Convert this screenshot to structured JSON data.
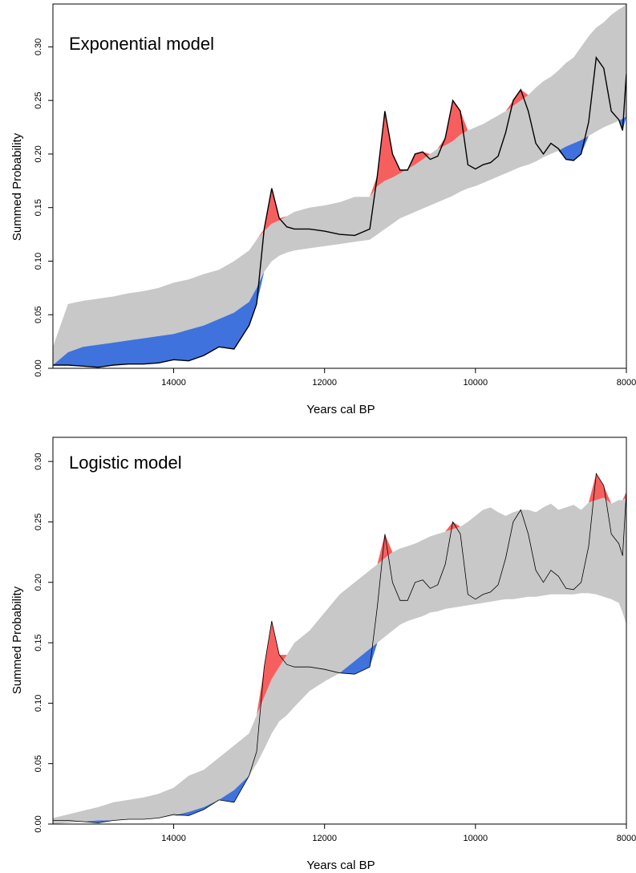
{
  "chart_data": [
    {
      "type": "area",
      "title": "Exponential model",
      "xlabel": "Years cal BP",
      "ylabel": "Summed Probability",
      "xlim": [
        15600,
        8000
      ],
      "ylim": [
        0,
        0.34
      ],
      "x_reversed": true,
      "grid": false,
      "xticks": [
        14000,
        12000,
        10000,
        8000
      ],
      "xtick_labels": [
        "14000",
        "12000",
        "10000",
        "8000"
      ],
      "yticks": [
        0,
        0.05,
        0.1,
        0.15,
        0.2,
        0.25,
        0.3
      ],
      "ytick_labels": [
        "0.00",
        "0.05",
        "0.10",
        "0.15",
        "0.20",
        "0.25",
        "0.30"
      ],
      "colors": {
        "envelope": "#c8c8c8",
        "above": "#f75f5f",
        "below": "#3f72dc",
        "spd": "#000000"
      },
      "x": [
        15600,
        15400,
        15200,
        15000,
        14800,
        14600,
        14400,
        14200,
        14000,
        13800,
        13600,
        13400,
        13200,
        13000,
        12900,
        12800,
        12700,
        12600,
        12500,
        12400,
        12200,
        12000,
        11800,
        11600,
        11400,
        11300,
        11200,
        11100,
        11000,
        10900,
        10800,
        10700,
        10600,
        10500,
        10400,
        10300,
        10200,
        10100,
        10000,
        9900,
        9800,
        9700,
        9600,
        9500,
        9400,
        9300,
        9200,
        9100,
        9000,
        8900,
        8800,
        8700,
        8600,
        8500,
        8400,
        8300,
        8200,
        8100,
        8050,
        8000
      ],
      "series": [
        {
          "values": [
            0.003,
            0.003,
            0.002,
            0.001,
            0.003,
            0.004,
            0.004,
            0.005,
            0.008,
            0.007,
            0.012,
            0.02,
            0.018,
            0.04,
            0.06,
            0.13,
            0.168,
            0.14,
            0.132,
            0.13,
            0.13,
            0.128,
            0.125,
            0.124,
            0.13,
            0.18,
            0.24,
            0.2,
            0.185,
            0.185,
            0.2,
            0.202,
            0.195,
            0.198,
            0.215,
            0.25,
            0.24,
            0.19,
            0.186,
            0.19,
            0.192,
            0.198,
            0.22,
            0.25,
            0.26,
            0.24,
            0.21,
            0.2,
            0.21,
            0.205,
            0.195,
            0.194,
            0.2,
            0.23,
            0.29,
            0.28,
            0.24,
            0.232,
            0.222,
            0.275
          ]
        },
        {
          "values": [
            0.02,
            0.06,
            0.063,
            0.065,
            0.067,
            0.07,
            0.072,
            0.075,
            0.08,
            0.083,
            0.088,
            0.092,
            0.1,
            0.11,
            0.12,
            0.128,
            0.135,
            0.138,
            0.142,
            0.146,
            0.15,
            0.152,
            0.155,
            0.16,
            0.16,
            0.17,
            0.175,
            0.178,
            0.182,
            0.186,
            0.19,
            0.195,
            0.2,
            0.205,
            0.208,
            0.212,
            0.218,
            0.222,
            0.225,
            0.228,
            0.232,
            0.236,
            0.24,
            0.245,
            0.25,
            0.255,
            0.262,
            0.268,
            0.272,
            0.278,
            0.285,
            0.29,
            0.3,
            0.31,
            0.318,
            0.323,
            0.33,
            0.335,
            0.337,
            0.34
          ]
        },
        {
          "values": [
            0.003,
            0.015,
            0.02,
            0.022,
            0.024,
            0.026,
            0.028,
            0.03,
            0.032,
            0.036,
            0.04,
            0.046,
            0.052,
            0.062,
            0.075,
            0.09,
            0.1,
            0.105,
            0.108,
            0.11,
            0.112,
            0.114,
            0.116,
            0.118,
            0.12,
            0.125,
            0.13,
            0.135,
            0.14,
            0.143,
            0.146,
            0.149,
            0.152,
            0.155,
            0.158,
            0.161,
            0.165,
            0.168,
            0.17,
            0.173,
            0.176,
            0.179,
            0.182,
            0.185,
            0.188,
            0.19,
            0.193,
            0.197,
            0.2,
            0.203,
            0.207,
            0.21,
            0.213,
            0.217,
            0.221,
            0.225,
            0.228,
            0.231,
            0.233,
            0.235
          ]
        }
      ]
    },
    {
      "type": "area",
      "title": "Logistic model",
      "xlabel": "Years cal BP",
      "ylabel": "Summed Probability",
      "xlim": [
        15600,
        8000
      ],
      "ylim": [
        0,
        0.32
      ],
      "x_reversed": true,
      "grid": false,
      "xticks": [
        14000,
        12000,
        10000,
        8000
      ],
      "xtick_labels": [
        "14000",
        "12000",
        "10000",
        "8000"
      ],
      "yticks": [
        0,
        0.05,
        0.1,
        0.15,
        0.2,
        0.25,
        0.3
      ],
      "ytick_labels": [
        "0.00",
        "0.05",
        "0.10",
        "0.15",
        "0.20",
        "0.25",
        "0.30"
      ],
      "colors": {
        "envelope": "#c8c8c8",
        "above": "#f75f5f",
        "below": "#3f72dc",
        "spd": "#000000"
      },
      "x": [
        15600,
        15400,
        15200,
        15000,
        14800,
        14600,
        14400,
        14200,
        14000,
        13800,
        13600,
        13400,
        13200,
        13000,
        12900,
        12800,
        12700,
        12600,
        12500,
        12400,
        12200,
        12000,
        11800,
        11600,
        11400,
        11300,
        11200,
        11100,
        11000,
        10900,
        10800,
        10700,
        10600,
        10500,
        10400,
        10300,
        10200,
        10100,
        10000,
        9900,
        9800,
        9700,
        9600,
        9500,
        9400,
        9300,
        9200,
        9100,
        9000,
        8900,
        8800,
        8700,
        8600,
        8500,
        8400,
        8300,
        8200,
        8100,
        8050,
        8000
      ],
      "series": [
        {
          "values": [
            0.003,
            0.003,
            0.002,
            0.001,
            0.003,
            0.004,
            0.004,
            0.005,
            0.008,
            0.007,
            0.012,
            0.02,
            0.018,
            0.04,
            0.06,
            0.13,
            0.168,
            0.14,
            0.132,
            0.13,
            0.13,
            0.128,
            0.125,
            0.124,
            0.13,
            0.18,
            0.24,
            0.2,
            0.185,
            0.185,
            0.2,
            0.202,
            0.195,
            0.198,
            0.215,
            0.25,
            0.24,
            0.19,
            0.186,
            0.19,
            0.192,
            0.198,
            0.22,
            0.25,
            0.26,
            0.24,
            0.21,
            0.2,
            0.21,
            0.205,
            0.195,
            0.194,
            0.2,
            0.23,
            0.29,
            0.28,
            0.24,
            0.232,
            0.222,
            0.275
          ]
        },
        {
          "values": [
            0.005,
            0.008,
            0.011,
            0.014,
            0.018,
            0.02,
            0.022,
            0.025,
            0.03,
            0.04,
            0.045,
            0.055,
            0.065,
            0.075,
            0.09,
            0.105,
            0.12,
            0.13,
            0.14,
            0.15,
            0.16,
            0.175,
            0.19,
            0.2,
            0.21,
            0.215,
            0.22,
            0.225,
            0.228,
            0.23,
            0.232,
            0.235,
            0.238,
            0.24,
            0.242,
            0.244,
            0.246,
            0.25,
            0.255,
            0.26,
            0.262,
            0.258,
            0.255,
            0.258,
            0.26,
            0.26,
            0.258,
            0.262,
            0.265,
            0.26,
            0.262,
            0.264,
            0.26,
            0.266,
            0.268,
            0.27,
            0.265,
            0.268,
            0.268,
            0.27
          ]
        },
        {
          "values": [
            0,
            0.001,
            0.002,
            0.003,
            0.003,
            0.004,
            0.004,
            0.005,
            0.007,
            0.01,
            0.014,
            0.02,
            0.028,
            0.04,
            0.05,
            0.062,
            0.075,
            0.085,
            0.09,
            0.097,
            0.11,
            0.118,
            0.125,
            0.135,
            0.145,
            0.15,
            0.155,
            0.16,
            0.165,
            0.168,
            0.17,
            0.172,
            0.175,
            0.176,
            0.178,
            0.179,
            0.18,
            0.181,
            0.182,
            0.183,
            0.184,
            0.185,
            0.186,
            0.186,
            0.187,
            0.188,
            0.188,
            0.189,
            0.19,
            0.19,
            0.19,
            0.19,
            0.191,
            0.191,
            0.19,
            0.188,
            0.186,
            0.183,
            0.175,
            0.165
          ]
        }
      ]
    }
  ]
}
